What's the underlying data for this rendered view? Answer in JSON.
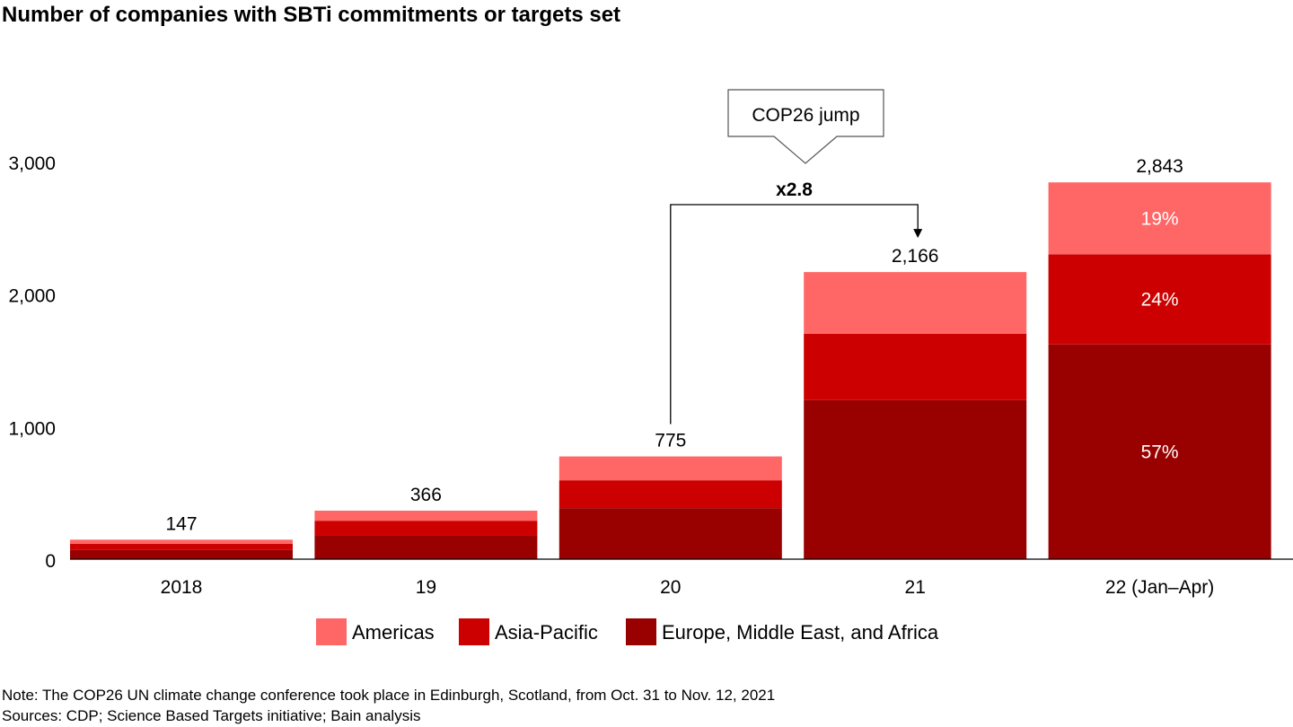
{
  "colors": {
    "americas": "#ff6666",
    "asia_pacific": "#cc0000",
    "emea": "#990000",
    "axis": "#000000",
    "arrow": "#000000"
  },
  "chart_data": {
    "type": "bar",
    "stacked": true,
    "title": "Number of companies with SBTi commitments or targets set",
    "xlabel": "",
    "ylabel": "",
    "ylim": [
      0,
      3000
    ],
    "yticks": [
      "0",
      "1,000",
      "2,000",
      "3,000"
    ],
    "ytick_values": [
      0,
      1000,
      2000,
      3000
    ],
    "grid": false,
    "legend_position": "bottom",
    "categories": [
      "2018",
      "19",
      "20",
      "21",
      "22 (Jan–Apr)"
    ],
    "totals": [
      147,
      366,
      775,
      2166,
      2843
    ],
    "total_labels": [
      "147",
      "366",
      "775",
      "2,166",
      "2,843"
    ],
    "series": [
      {
        "name": "Europe, Middle East, and Africa",
        "color_key": "emea",
        "values": [
          70,
          180,
          385,
          1200,
          1620
        ]
      },
      {
        "name": "Asia-Pacific",
        "color_key": "asia_pacific",
        "values": [
          45,
          110,
          210,
          500,
          680
        ]
      },
      {
        "name": "Americas",
        "color_key": "americas",
        "values": [
          32,
          76,
          180,
          466,
          543
        ]
      }
    ],
    "segment_labels": [
      {
        "category_index": 4,
        "series_index": 0,
        "text": "57%"
      },
      {
        "category_index": 4,
        "series_index": 1,
        "text": "24%"
      },
      {
        "category_index": 4,
        "series_index": 2,
        "text": "19%"
      }
    ],
    "legend_order": [
      "Americas",
      "Asia-Pacific",
      "Europe, Middle East, and Africa"
    ],
    "annotations": {
      "callout_text": "COP26 jump",
      "multiplier_text": "x2.8",
      "from_category_index": 2,
      "to_category_index": 3
    }
  },
  "footnotes": {
    "note": "Note: The COP26 UN climate change conference took place in Edinburgh, Scotland, from Oct. 31 to Nov. 12, 2021",
    "sources": "Sources: CDP; Science Based Targets initiative; Bain analysis"
  }
}
